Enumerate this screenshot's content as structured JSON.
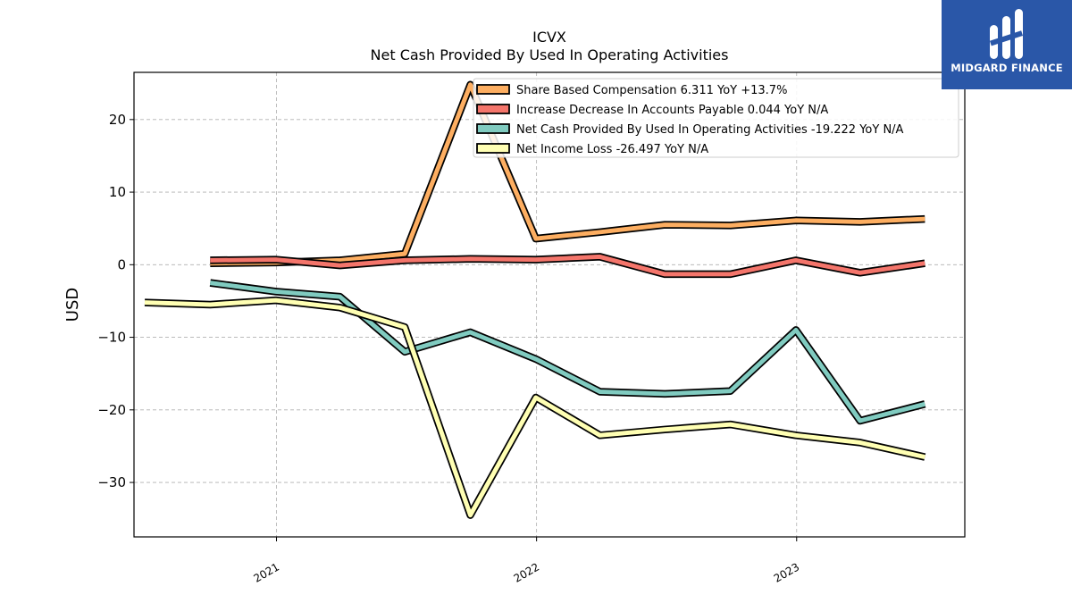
{
  "logo": {
    "text": "MIDGARD FINANCE"
  },
  "chart_data": {
    "type": "line",
    "title": "ICVX",
    "subtitle": "Net Cash Provided By Used In Operating Activities",
    "xlabel": "",
    "ylabel": "USD",
    "xlim": [
      "2020-06-15",
      "2023-08-25"
    ],
    "ylim": [
      -37.5,
      26.5
    ],
    "yticks": [
      {
        "value": 20,
        "label": "20"
      },
      {
        "value": 10,
        "label": "10"
      },
      {
        "value": 0,
        "label": "0"
      },
      {
        "value": -10,
        "label": "−10"
      },
      {
        "value": -20,
        "label": "−20"
      },
      {
        "value": -30,
        "label": "−30"
      }
    ],
    "xticks": [
      {
        "value": "2021-01-01",
        "label": "2021"
      },
      {
        "value": "2022-01-01",
        "label": "2022"
      },
      {
        "value": "2023-01-01",
        "label": "2023"
      }
    ],
    "grid": true,
    "legend_position": "top-right",
    "series": [
      {
        "name": "Share Based Compensation",
        "legend_label": "Share Based Compensation  6.311 YoY +13.7%",
        "color": "#fdae61",
        "points": [
          {
            "x": "2020-09-30",
            "y": 0.2
          },
          {
            "x": "2020-12-31",
            "y": 0.3
          },
          {
            "x": "2021-03-31",
            "y": 0.6
          },
          {
            "x": "2021-06-30",
            "y": 1.5
          },
          {
            "x": "2021-09-30",
            "y": 24.8
          },
          {
            "x": "2021-12-31",
            "y": 3.6
          },
          {
            "x": "2022-03-31",
            "y": 4.5
          },
          {
            "x": "2022-06-30",
            "y": 5.5
          },
          {
            "x": "2022-09-30",
            "y": 5.4
          },
          {
            "x": "2022-12-31",
            "y": 6.1
          },
          {
            "x": "2023-03-31",
            "y": 5.9
          },
          {
            "x": "2023-06-30",
            "y": 6.3
          }
        ]
      },
      {
        "name": "Increase Decrease In Accounts Payable",
        "legend_label": "Increase Decrease In Accounts Payable  0.044 YoY N/A",
        "color": "#f4756b",
        "points": [
          {
            "x": "2020-09-30",
            "y": 0.6
          },
          {
            "x": "2020-12-31",
            "y": 0.7
          },
          {
            "x": "2021-03-31",
            "y": -0.1
          },
          {
            "x": "2021-06-30",
            "y": 0.6
          },
          {
            "x": "2021-09-30",
            "y": 0.8
          },
          {
            "x": "2021-12-31",
            "y": 0.7
          },
          {
            "x": "2022-03-31",
            "y": 1.1
          },
          {
            "x": "2022-06-30",
            "y": -1.3
          },
          {
            "x": "2022-09-30",
            "y": -1.3
          },
          {
            "x": "2022-12-31",
            "y": 0.6
          },
          {
            "x": "2023-03-31",
            "y": -1.1
          },
          {
            "x": "2023-06-30",
            "y": 0.2
          }
        ]
      },
      {
        "name": "Net Cash Provided By Used In Operating Activities",
        "legend_label": "Net Cash Provided By Used In Operating Activities  -19.222 YoY N/A",
        "color": "#80cbc0",
        "points": [
          {
            "x": "2020-09-30",
            "y": -2.5
          },
          {
            "x": "2020-12-31",
            "y": -3.7
          },
          {
            "x": "2021-03-31",
            "y": -4.4
          },
          {
            "x": "2021-06-30",
            "y": -12.0
          },
          {
            "x": "2021-09-30",
            "y": -9.3
          },
          {
            "x": "2021-12-31",
            "y": -13.0
          },
          {
            "x": "2022-03-31",
            "y": -17.5
          },
          {
            "x": "2022-06-30",
            "y": -17.8
          },
          {
            "x": "2022-09-30",
            "y": -17.4
          },
          {
            "x": "2022-12-31",
            "y": -9.0
          },
          {
            "x": "2023-03-31",
            "y": -21.5
          },
          {
            "x": "2023-06-30",
            "y": -19.2
          }
        ]
      },
      {
        "name": "Net Income Loss",
        "legend_label": "Net Income Loss  -26.497 YoY N/A",
        "color": "#ffffb3",
        "points": [
          {
            "x": "2020-06-30",
            "y": -5.2
          },
          {
            "x": "2020-09-30",
            "y": -5.5
          },
          {
            "x": "2020-12-31",
            "y": -4.9
          },
          {
            "x": "2021-03-31",
            "y": -5.9
          },
          {
            "x": "2021-06-30",
            "y": -8.6
          },
          {
            "x": "2021-09-30",
            "y": -34.5
          },
          {
            "x": "2021-12-31",
            "y": -18.3
          },
          {
            "x": "2022-03-31",
            "y": -23.5
          },
          {
            "x": "2022-06-30",
            "y": -22.7
          },
          {
            "x": "2022-09-30",
            "y": -22.0
          },
          {
            "x": "2022-12-31",
            "y": -23.5
          },
          {
            "x": "2023-03-31",
            "y": -24.5
          },
          {
            "x": "2023-06-30",
            "y": -26.5
          }
        ]
      }
    ]
  }
}
